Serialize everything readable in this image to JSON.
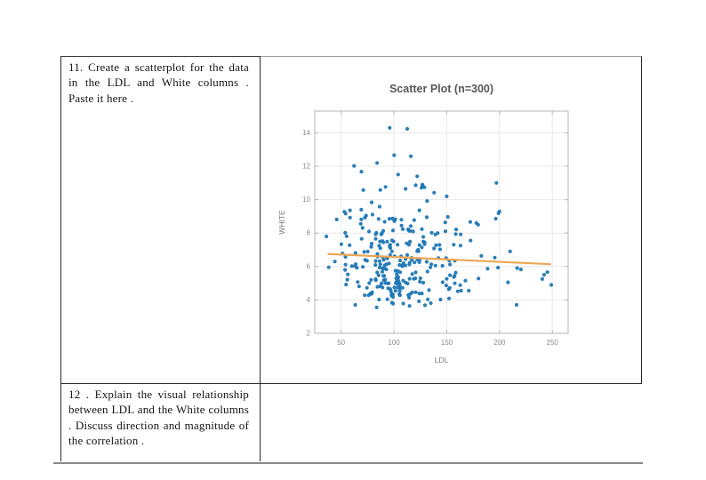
{
  "table": {
    "question_11": "11. Create a scatterplot for the data in the LDL and White columns . Paste it here .",
    "question_12": "12 . Explain the visual relationship between LDL and the White columns . Discuss direction and magnitude of the correlation ."
  },
  "chart_data": {
    "type": "scatter",
    "title": "Scatter Plot (n=300)",
    "xlabel": "LDL",
    "ylabel": "WHITE",
    "n_points": 300,
    "xlim": [
      25,
      265
    ],
    "ylim": [
      2,
      15.3
    ],
    "xticks": [
      50,
      100,
      150,
      200,
      250
    ],
    "yticks": [
      2,
      4,
      6,
      8,
      10,
      12,
      14
    ],
    "grid": true,
    "legend": "none",
    "point_color": "#1f77b4",
    "trend_line": {
      "color": "#eda654",
      "points": [
        [
          38,
          6.75
        ],
        [
          248,
          6.14
        ]
      ]
    },
    "notable_points": [
      [
        96,
        14.3
      ],
      [
        116,
        12.6
      ],
      [
        84,
        12.2
      ],
      [
        122,
        11.4
      ],
      [
        197,
        11.0
      ],
      [
        127,
        10.9
      ],
      [
        200,
        9.3
      ],
      [
        178,
        8.6
      ],
      [
        249,
        4.9
      ],
      [
        36,
        7.8
      ],
      [
        44,
        6.3
      ],
      [
        150,
        10.2
      ],
      [
        104,
        11.5
      ],
      [
        69,
        9.4
      ],
      [
        210,
        6.9
      ]
    ],
    "cloud_distribution": {
      "seed": 7,
      "x_log_median": 108,
      "x_log_sigma": 0.33,
      "x_min": 34,
      "x_max": 252,
      "y_log_median": 6.3,
      "y_log_sigma": 0.27,
      "y_min": 2.8,
      "y_max": 14.4,
      "slope_adjust": -0.003
    }
  },
  "colors": {
    "axis": "#b5b5b5",
    "grid": "#e9e9e9",
    "tick_label": "#8a8a8a",
    "axis_label": "#7a7a7a",
    "title": "#585858",
    "table_border": "#2a2a2a",
    "page_edge": "#8a8a8a"
  }
}
